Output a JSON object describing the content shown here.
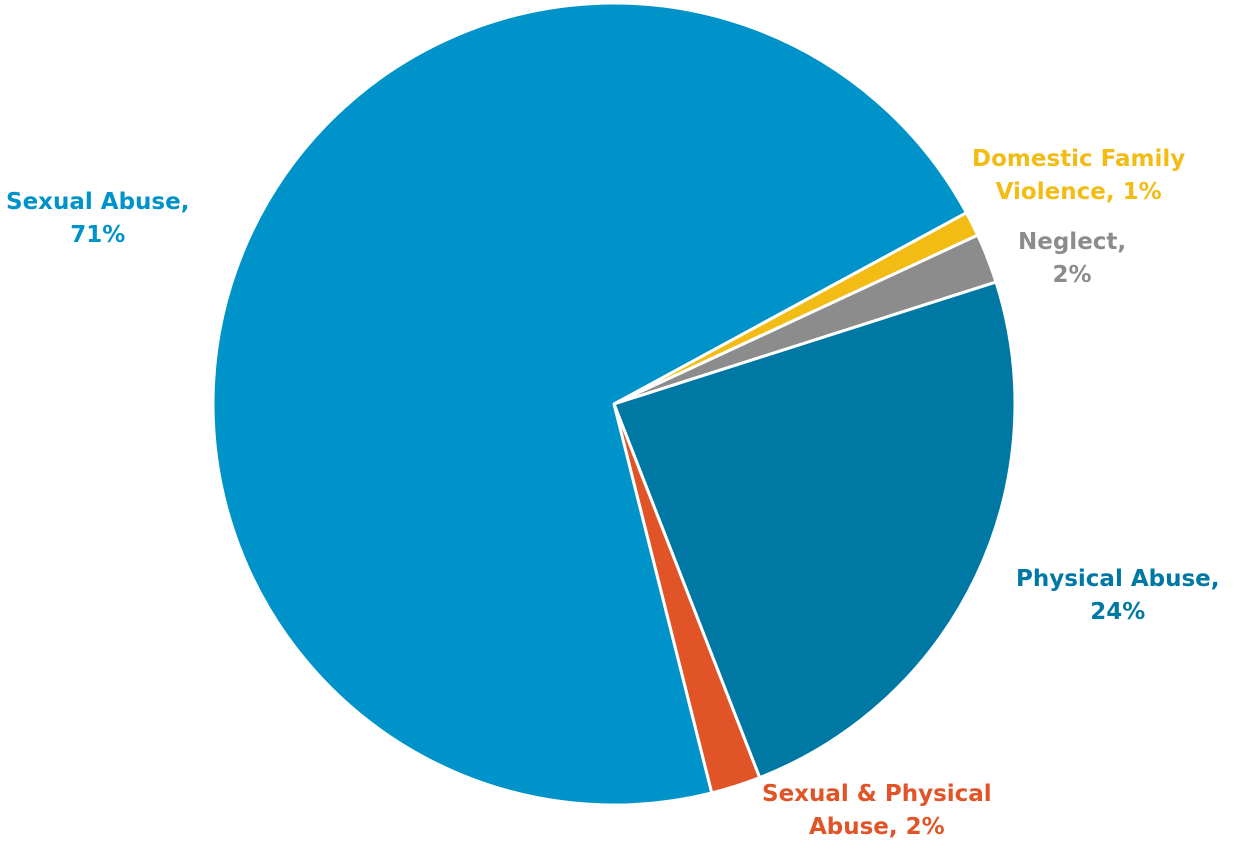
{
  "chart_data": {
    "type": "pie",
    "slices": [
      {
        "name": "Domestic Family Violence",
        "value": 1,
        "color": "#F2BC14",
        "label_lines": [
          "Domestic Family",
          "Violence, 1%"
        ]
      },
      {
        "name": "Neglect",
        "value": 2,
        "color": "#8C8C8C",
        "label_lines": [
          "Neglect,",
          "2%"
        ]
      },
      {
        "name": "Physical Abuse",
        "value": 24,
        "color": "#0078A4",
        "label_lines": [
          "Physical Abuse,",
          "24%"
        ]
      },
      {
        "name": "Sexual & Physical Abuse",
        "value": 2,
        "color": "#E05427",
        "label_lines": [
          "Sexual & Physical",
          "Abuse, 2%"
        ]
      },
      {
        "name": "Sexual Abuse",
        "value": 71,
        "color": "#0093C9",
        "label_lines": [
          "Sexual Abuse,",
          "71%"
        ]
      }
    ]
  }
}
